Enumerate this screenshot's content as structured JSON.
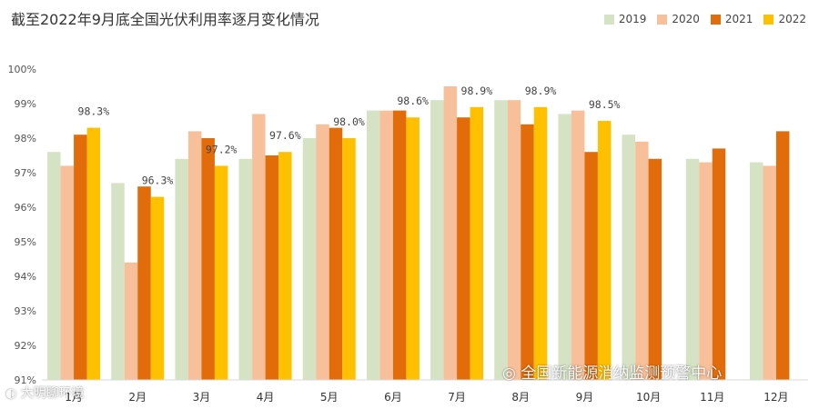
{
  "chart_data": {
    "type": "bar",
    "title": "截至2022年9月底全国光伏利用率逐月变化情况",
    "categories": [
      "1月",
      "2月",
      "3月",
      "4月",
      "5月",
      "6月",
      "7月",
      "8月",
      "9月",
      "10月",
      "11月",
      "12月"
    ],
    "series": [
      {
        "name": "2019",
        "color": "#d5e2c4",
        "values": [
          97.6,
          96.7,
          97.4,
          97.4,
          98.0,
          98.8,
          99.1,
          99.1,
          98.7,
          98.1,
          97.4,
          97.3
        ]
      },
      {
        "name": "2020",
        "color": "#f8c09a",
        "values": [
          97.2,
          94.4,
          98.2,
          98.7,
          98.4,
          98.8,
          99.5,
          99.1,
          98.8,
          97.9,
          97.3,
          97.2
        ]
      },
      {
        "name": "2021",
        "color": "#e36c0a",
        "values": [
          98.1,
          96.6,
          98.0,
          97.5,
          98.3,
          98.8,
          98.6,
          98.4,
          97.6,
          97.4,
          97.7,
          98.2
        ]
      },
      {
        "name": "2022",
        "color": "#ffc000",
        "values": [
          98.3,
          96.3,
          97.2,
          97.6,
          98.0,
          98.6,
          98.9,
          98.9,
          98.5,
          null,
          null,
          null
        ]
      }
    ],
    "data_labels": [
      "98.3%",
      "96.3%",
      "97.2%",
      "97.6%",
      "98.0%",
      "98.6%",
      "98.9%",
      "98.9%",
      "98.5%"
    ],
    "yticks": [
      "91%",
      "92%",
      "93%",
      "94%",
      "95%",
      "96%",
      "97%",
      "98%",
      "99%",
      "100%"
    ],
    "ylim": [
      91,
      100
    ],
    "xlabel": "",
    "ylabel": "",
    "legend_position": "top-right"
  },
  "watermark": {
    "source": "全国新能源消纳监测预警中心",
    "account": "大明聊环境"
  }
}
